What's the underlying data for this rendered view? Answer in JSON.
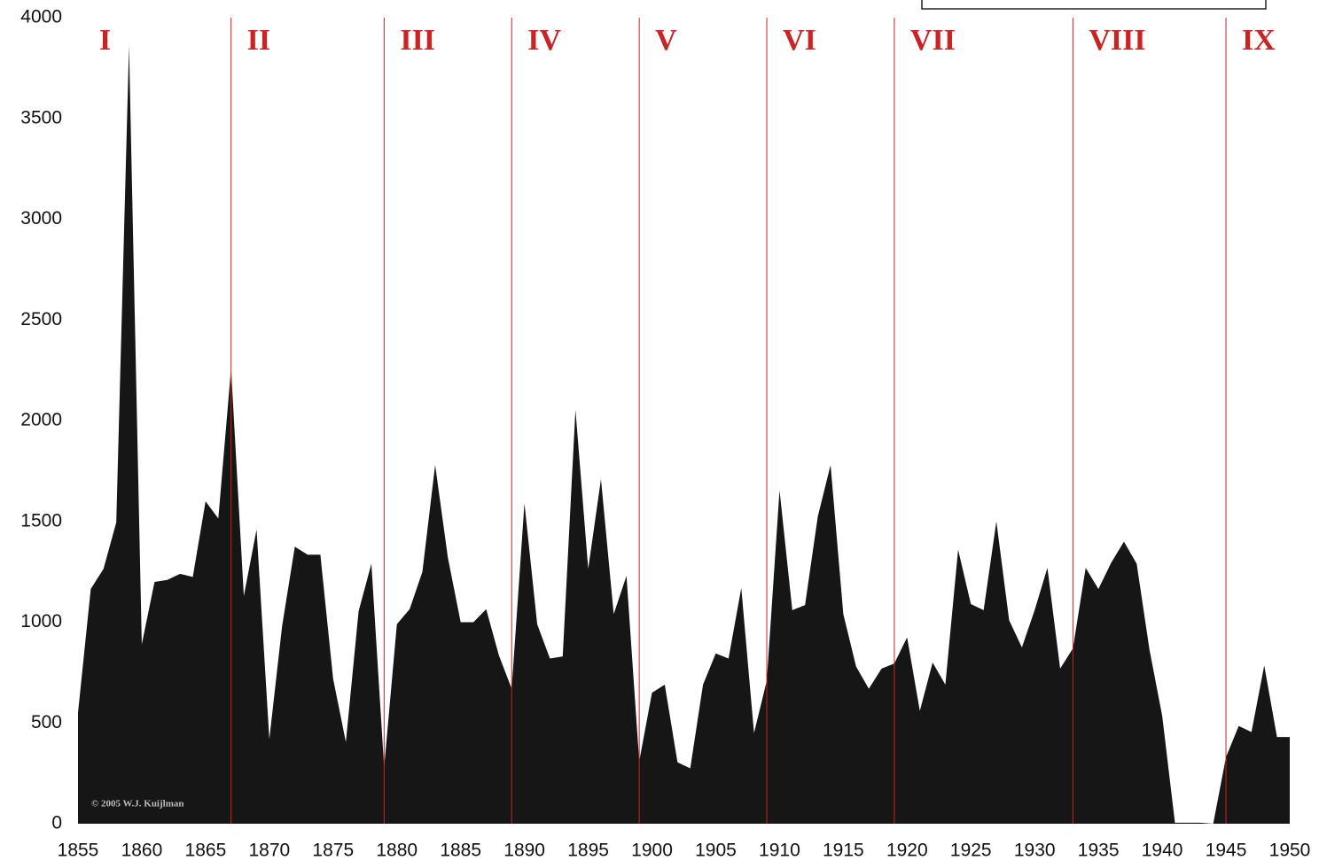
{
  "chart_data": {
    "type": "area",
    "x": [
      1855,
      1856,
      1857,
      1858,
      1859,
      1860,
      1861,
      1862,
      1863,
      1864,
      1865,
      1866,
      1867,
      1868,
      1869,
      1870,
      1871,
      1872,
      1873,
      1874,
      1875,
      1876,
      1877,
      1878,
      1879,
      1880,
      1881,
      1882,
      1883,
      1884,
      1885,
      1886,
      1887,
      1888,
      1889,
      1890,
      1891,
      1892,
      1893,
      1894,
      1895,
      1896,
      1897,
      1898,
      1899,
      1900,
      1901,
      1902,
      1903,
      1904,
      1905,
      1906,
      1907,
      1908,
      1909,
      1910,
      1911,
      1912,
      1913,
      1914,
      1915,
      1916,
      1917,
      1918,
      1919,
      1920,
      1921,
      1922,
      1923,
      1924,
      1925,
      1926,
      1927,
      1928,
      1929,
      1930,
      1931,
      1932,
      1933,
      1934,
      1935,
      1936,
      1937,
      1938,
      1939,
      1940,
      1941,
      1942,
      1943,
      1944,
      1945,
      1946,
      1947,
      1948,
      1949,
      1950
    ],
    "values": [
      550,
      1165,
      1265,
      1495,
      3860,
      890,
      1200,
      1210,
      1240,
      1225,
      1600,
      1515,
      2260,
      1130,
      1460,
      420,
      980,
      1375,
      1335,
      1335,
      720,
      405,
      1055,
      1290,
      280,
      990,
      1065,
      1250,
      1780,
      1320,
      1000,
      1000,
      1065,
      835,
      670,
      1590,
      990,
      820,
      830,
      2055,
      1265,
      1710,
      1040,
      1230,
      310,
      650,
      690,
      305,
      275,
      690,
      845,
      820,
      1170,
      450,
      710,
      1655,
      1060,
      1085,
      1525,
      1780,
      1040,
      780,
      670,
      770,
      795,
      925,
      560,
      800,
      690,
      1360,
      1090,
      1060,
      1500,
      1010,
      875,
      1060,
      1270,
      770,
      870,
      1270,
      1165,
      1295,
      1400,
      1290,
      865,
      535,
      5,
      5,
      5,
      0,
      330,
      485,
      455,
      785,
      430,
      430
    ],
    "color": "#161616",
    "xlim": [
      1855,
      1950
    ],
    "xticks": [
      1855,
      1860,
      1865,
      1870,
      1875,
      1880,
      1885,
      1890,
      1895,
      1900,
      1905,
      1910,
      1915,
      1920,
      1925,
      1930,
      1935,
      1940,
      1945,
      1950
    ],
    "ylim": [
      0,
      4000
    ],
    "yticks": [
      0,
      500,
      1000,
      1500,
      2000,
      2500,
      3000,
      3500,
      4000
    ],
    "grid": false,
    "periods": [
      {
        "label": "I",
        "start": 1855
      },
      {
        "label": "II",
        "start": 1867
      },
      {
        "label": "III",
        "start": 1879
      },
      {
        "label": "IV",
        "start": 1889
      },
      {
        "label": "V",
        "start": 1899
      },
      {
        "label": "VI",
        "start": 1909
      },
      {
        "label": "VII",
        "start": 1919
      },
      {
        "label": "VIII",
        "start": 1933
      },
      {
        "label": "IX",
        "start": 1945
      }
    ],
    "period_color": "#cc2222",
    "annotation": "© 2005 W.J. Kuijlman"
  }
}
